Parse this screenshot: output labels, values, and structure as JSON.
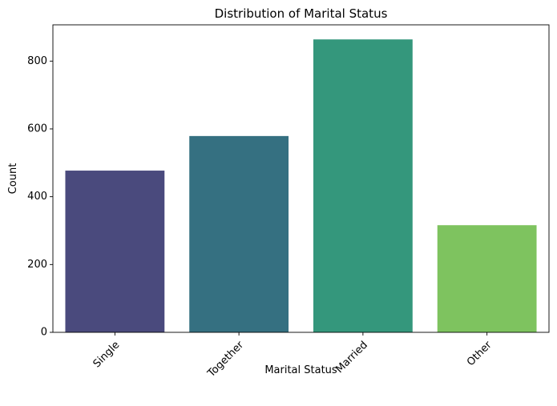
{
  "chart_data": {
    "type": "bar",
    "title": "Distribution of Marital Status",
    "xlabel": "Marital Status",
    "ylabel": "Count",
    "categories": [
      "Single",
      "Together",
      "Married",
      "Other"
    ],
    "values": [
      477,
      579,
      864,
      316
    ],
    "colors": [
      "#4a4a7d",
      "#357081",
      "#34977c",
      "#7ec35f"
    ],
    "ylim": [
      0,
      907
    ],
    "yticks": [
      0,
      200,
      400,
      600,
      800
    ],
    "grid": false,
    "legend": "none",
    "xtick_rotation": -45
  }
}
